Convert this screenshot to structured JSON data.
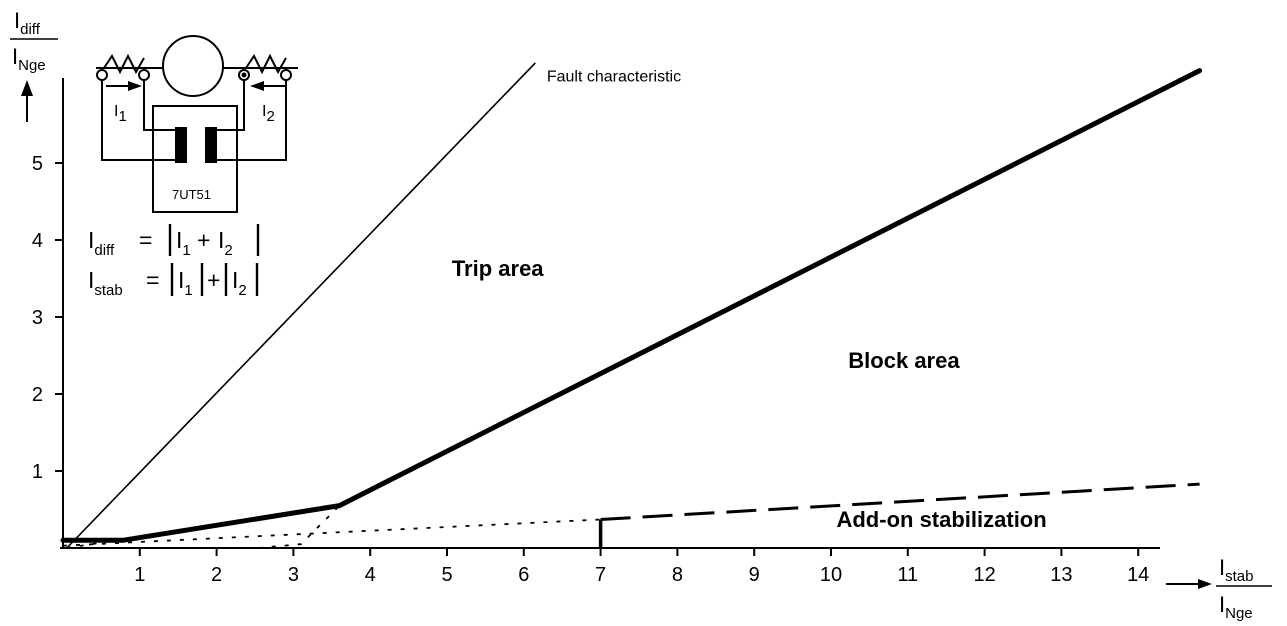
{
  "chart_data": {
    "type": "line",
    "x_axis": {
      "label_numerator_main": "I",
      "label_numerator_sub": "stab",
      "label_denominator_main": "I",
      "label_denominator_sub": "Nge",
      "range": [
        0,
        15
      ],
      "ticks": [
        1,
        2,
        3,
        4,
        5,
        6,
        7,
        8,
        9,
        10,
        11,
        12,
        13,
        14
      ]
    },
    "y_axis": {
      "label_numerator_main": "I",
      "label_numerator_sub": "diff",
      "label_denominator_main": "I",
      "label_denominator_sub": "Nge",
      "range": [
        0,
        6.5
      ],
      "ticks": [
        1,
        2,
        3,
        4,
        5
      ]
    },
    "series": [
      {
        "name": "Fault characteristic",
        "style": "thin-solid",
        "points": [
          [
            0.05,
            0
          ],
          [
            6.15,
            6.3
          ]
        ]
      },
      {
        "name": "",
        "style": "thick-solid",
        "points": [
          [
            0,
            0.1
          ],
          [
            0.78,
            0.1
          ],
          [
            3.6,
            0.55
          ],
          [
            14.8,
            6.2
          ]
        ]
      },
      {
        "name": "",
        "style": "dashed",
        "points": [
          [
            7.0,
            0.37
          ],
          [
            14.8,
            0.83
          ]
        ]
      },
      {
        "name": "",
        "style": "dotted",
        "points": [
          [
            0.05,
            0
          ],
          [
            3.6,
            0.55
          ]
        ]
      },
      {
        "name": "",
        "style": "dotted",
        "points": [
          [
            0,
            0.03
          ],
          [
            7.0,
            0.37
          ]
        ]
      },
      {
        "name": "",
        "style": "dotted",
        "points": [
          [
            2.55,
            0
          ],
          [
            3.1,
            0.05
          ],
          [
            3.6,
            0.55
          ]
        ]
      }
    ],
    "marker": {
      "x": 7.0,
      "y_from": 0,
      "y_to": 0.37
    },
    "annotations": [
      {
        "id": "trip",
        "text": "Trip area",
        "x": 5.66,
        "y": 3.53
      },
      {
        "id": "block",
        "text": "Block area",
        "x": 10.95,
        "y": 2.34
      },
      {
        "id": "addon",
        "text": "Add-on stabilization",
        "x": 11.44,
        "y": 0.27
      },
      {
        "id": "fault",
        "text": "Fault characteristic",
        "x": 6.3,
        "y": 6.06
      }
    ]
  },
  "inset": {
    "device_label": "7UT51",
    "current_1_main": "I",
    "current_1_sub": "1",
    "current_2_main": "I",
    "current_2_sub": "2"
  },
  "formulas": {
    "diff": {
      "lhs_main": "I",
      "lhs_sub": "diff",
      "eq": "=",
      "i1_main": "I",
      "i1_sub": "1",
      "plus": "+",
      "i2_main": "I",
      "i2_sub": "2"
    },
    "stab": {
      "lhs_main": "I",
      "lhs_sub": "stab",
      "eq": "=",
      "i1_main": "I",
      "i1_sub": "1",
      "plus": "+",
      "i2_main": "I",
      "i2_sub": "2"
    }
  }
}
